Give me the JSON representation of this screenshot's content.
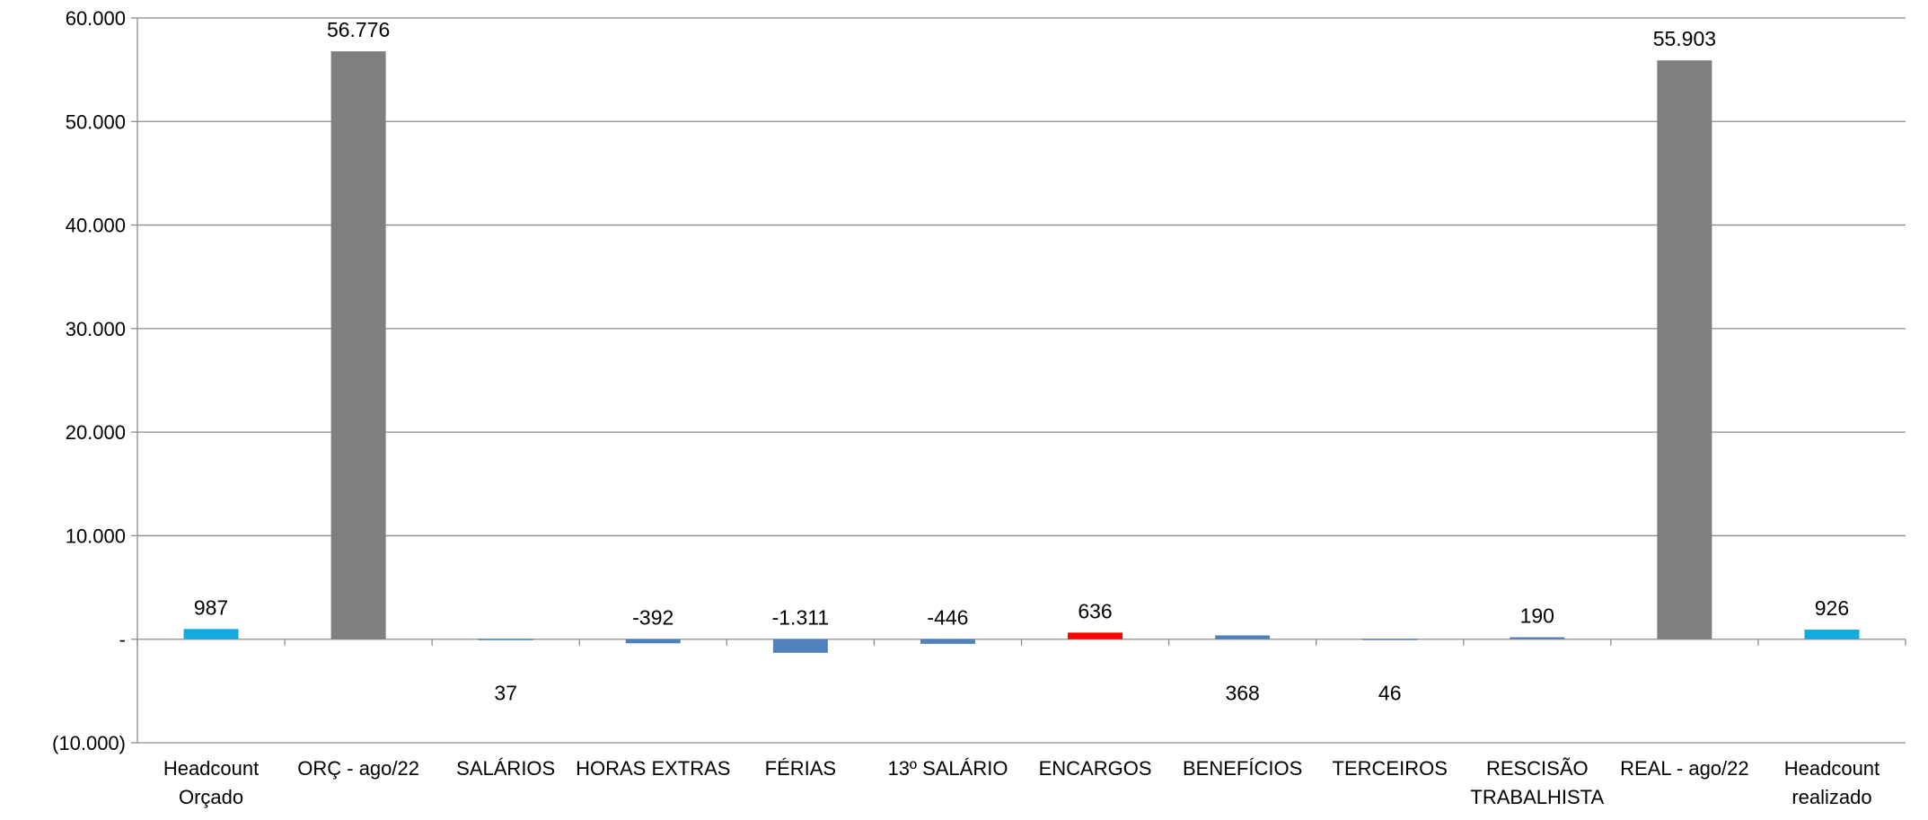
{
  "chart_data": {
    "type": "bar",
    "title": "",
    "xlabel": "",
    "ylabel": "",
    "ylim": [
      -10000,
      60000
    ],
    "grid": true,
    "legend": "none",
    "y_ticks": [
      {
        "value": 60000,
        "label": "60.000"
      },
      {
        "value": 50000,
        "label": "50.000"
      },
      {
        "value": 40000,
        "label": "40.000"
      },
      {
        "value": 30000,
        "label": "30.000"
      },
      {
        "value": 20000,
        "label": "20.000"
      },
      {
        "value": 10000,
        "label": "10.000"
      },
      {
        "value": 0,
        "label": "-"
      },
      {
        "value": -10000,
        "label": "(10.000)"
      }
    ],
    "categories": [
      [
        "Headcount",
        "Orçado"
      ],
      [
        "ORÇ - ago/22"
      ],
      [
        "SALÁRIOS"
      ],
      [
        "HORAS EXTRAS"
      ],
      [
        "FÉRIAS"
      ],
      [
        "13º SALÁRIO"
      ],
      [
        "ENCARGOS"
      ],
      [
        "BENEFÍCIOS"
      ],
      [
        "TERCEIROS"
      ],
      [
        "RESCISÃO",
        "TRABALHISTA"
      ],
      [
        "REAL - ago/22"
      ],
      [
        "Headcount",
        "realizado"
      ]
    ],
    "bars": [
      {
        "start": 0,
        "value": 987,
        "label": "987",
        "color": "#13a9e1",
        "label_pos": "above"
      },
      {
        "start": 0,
        "value": 56776,
        "label": "56.776",
        "color": "#7f7f7f",
        "label_pos": "above"
      },
      {
        "start": 0,
        "value": 37,
        "label": "37",
        "color": "#4f81bd",
        "label_pos": "below"
      },
      {
        "start": 0,
        "value": -392,
        "label": "-392",
        "color": "#4f81bd",
        "label_pos": "above"
      },
      {
        "start": 0,
        "value": -1311,
        "label": "-1.311",
        "color": "#4f81bd",
        "label_pos": "above"
      },
      {
        "start": 0,
        "value": -446,
        "label": "-446",
        "color": "#4f81bd",
        "label_pos": "above"
      },
      {
        "start": 0,
        "value": 636,
        "label": "636",
        "color": "#ff0000",
        "label_pos": "above"
      },
      {
        "start": 0,
        "value": 368,
        "label": "368",
        "color": "#4f81bd",
        "label_pos": "below"
      },
      {
        "start": 0,
        "value": 46,
        "label": "46",
        "color": "#4f81bd",
        "label_pos": "below"
      },
      {
        "start": 0,
        "value": 190,
        "label": "190",
        "color": "#4f81bd",
        "label_pos": "above"
      },
      {
        "start": 0,
        "value": 55903,
        "label": "55.903",
        "color": "#7f7f7f",
        "label_pos": "above"
      },
      {
        "start": 0,
        "value": 926,
        "label": "926",
        "color": "#13a9e1",
        "label_pos": "above"
      }
    ],
    "colors": {
      "grid": "#8c8c8c",
      "axis": "#8c8c8c",
      "total": "#7f7f7f",
      "headcount": "#13a9e1",
      "variation": "#4f81bd",
      "highlight": "#ff0000"
    }
  }
}
